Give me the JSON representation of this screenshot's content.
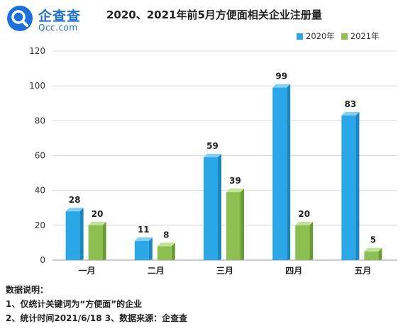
{
  "brand": {
    "name_cn": "企查查",
    "name_en": "Qcc.com",
    "color": "#1b6fe0"
  },
  "chart_data": {
    "type": "bar",
    "title": "2020、2021年前5月方便面相关企业注册量",
    "categories": [
      "一月",
      "二月",
      "三月",
      "四月",
      "五月"
    ],
    "series": [
      {
        "name": "2020年",
        "values": [
          28,
          11,
          59,
          99,
          83
        ],
        "color": "#2aa7e6",
        "side_color": "#1a86c2",
        "top_color": "#7fd0f4"
      },
      {
        "name": "2021年",
        "values": [
          20,
          8,
          39,
          20,
          5
        ],
        "color": "#8cc152",
        "side_color": "#6a9c35",
        "top_color": "#c2e396"
      }
    ],
    "ylim": [
      0,
      120
    ],
    "yticks": [
      0,
      20,
      40,
      60,
      80,
      100,
      120
    ],
    "grid": true,
    "legend_position": "top-right"
  },
  "notes": {
    "heading": "数据说明：",
    "line1": "1、仅统计关键词为“方便面”的企业",
    "line2": "2、统计时间2021/6/18   3、数据来源：企查查"
  }
}
